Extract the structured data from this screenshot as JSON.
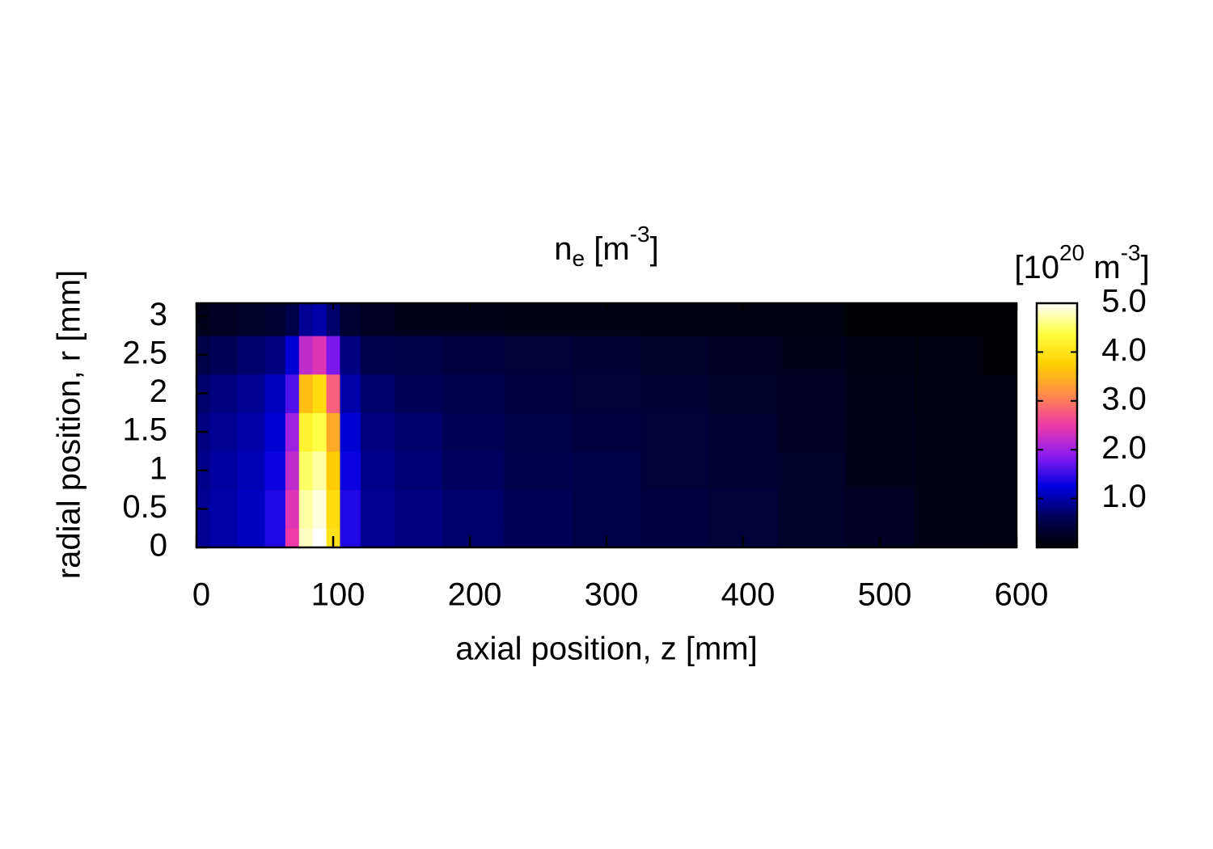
{
  "chart_data": {
    "type": "heatmap",
    "title": [
      "n",
      "e",
      " [m",
      "-3",
      "]"
    ],
    "x_label": "axial position, z [mm]",
    "y_label": "radial position, r [mm]",
    "colorbar_label": [
      "[10",
      "20",
      " m",
      "-3",
      "]"
    ],
    "x": [
      0,
      20,
      40,
      60,
      70,
      80,
      90,
      100,
      110,
      130,
      160,
      200,
      250,
      300,
      350,
      400,
      450,
      500,
      550,
      600
    ],
    "y": [
      0,
      0.5,
      1,
      1.5,
      2,
      2.5,
      3
    ],
    "z": [
      [
        0.9,
        1.0,
        1.1,
        1.4,
        2.5,
        4.8,
        5.0,
        4.0,
        1.4,
        0.9,
        0.8,
        0.7,
        0.6,
        0.5,
        0.45,
        0.4,
        0.3,
        0.25,
        0.15,
        0.1
      ],
      [
        0.9,
        1.0,
        1.1,
        1.4,
        2.4,
        4.7,
        4.9,
        3.9,
        1.4,
        0.9,
        0.8,
        0.7,
        0.6,
        0.5,
        0.45,
        0.4,
        0.3,
        0.25,
        0.15,
        0.1
      ],
      [
        0.85,
        0.95,
        1.05,
        1.3,
        2.2,
        4.5,
        4.7,
        3.7,
        1.3,
        0.85,
        0.75,
        0.65,
        0.55,
        0.5,
        0.4,
        0.35,
        0.3,
        0.2,
        0.15,
        0.1
      ],
      [
        0.8,
        0.9,
        1.0,
        1.2,
        2.0,
        4.2,
        4.4,
        3.4,
        1.2,
        0.8,
        0.7,
        0.6,
        0.5,
        0.45,
        0.4,
        0.35,
        0.25,
        0.2,
        0.15,
        0.1
      ],
      [
        0.7,
        0.8,
        0.9,
        1.1,
        1.6,
        3.6,
        3.9,
        2.8,
        1.0,
        0.7,
        0.6,
        0.55,
        0.45,
        0.4,
        0.35,
        0.3,
        0.25,
        0.2,
        0.1,
        0.1
      ],
      [
        0.5,
        0.6,
        0.7,
        0.8,
        1.2,
        2.2,
        2.4,
        1.8,
        0.8,
        0.55,
        0.5,
        0.45,
        0.4,
        0.35,
        0.3,
        0.25,
        0.2,
        0.15,
        0.1,
        0.05
      ],
      [
        0.2,
        0.25,
        0.3,
        0.35,
        0.5,
        0.9,
        1.0,
        0.7,
        0.35,
        0.25,
        0.2,
        0.2,
        0.15,
        0.15,
        0.1,
        0.1,
        0.1,
        0.05,
        0.05,
        0.05
      ]
    ],
    "xlim": [
      0,
      600
    ],
    "xticks": [
      0,
      100,
      200,
      300,
      400,
      500,
      600
    ],
    "ylim": [
      0,
      3.17
    ],
    "yticks": [
      0,
      0.5,
      1,
      1.5,
      2,
      2.5,
      3
    ],
    "clim": [
      0,
      5
    ],
    "cticks": [
      {
        "value": 1,
        "label": "1.0"
      },
      {
        "value": 2,
        "label": "2.0"
      },
      {
        "value": 3,
        "label": "3.0"
      },
      {
        "value": 4,
        "label": "4.0"
      },
      {
        "value": 5,
        "label": "5.0"
      }
    ],
    "colorscale": [
      "#000000",
      "#00005a",
      "#0000e0",
      "#8a1cf0",
      "#ee3aa8",
      "#ff8a4a",
      "#ffd000",
      "#ffff40",
      "#ffffff"
    ]
  }
}
